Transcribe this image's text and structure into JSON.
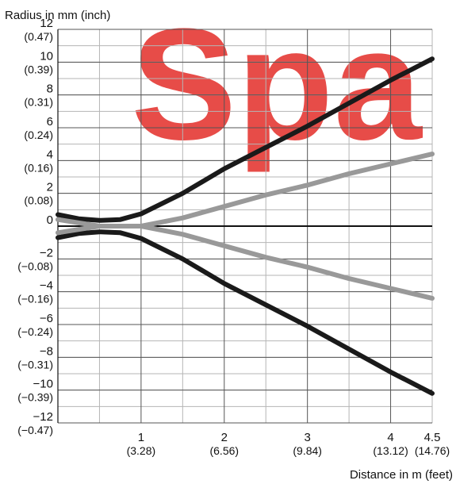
{
  "watermark": "Spa",
  "chart_data": {
    "type": "line",
    "ylabel": "Radius in mm (inch)",
    "xlabel": "Distance in m (feet)",
    "xlim": [
      0,
      4.5
    ],
    "ylim": [
      -12,
      12
    ],
    "grid": true,
    "x_ticks": [
      {
        "value": 1,
        "label": "1",
        "sublabel": "(3.28)"
      },
      {
        "value": 2,
        "label": "2",
        "sublabel": "(6.56)"
      },
      {
        "value": 3,
        "label": "3",
        "sublabel": "(9.84)"
      },
      {
        "value": 4,
        "label": "4",
        "sublabel": "(13.12)"
      },
      {
        "value": 4.5,
        "label": "4.5",
        "sublabel": "(14.76)"
      }
    ],
    "y_ticks": [
      {
        "value": 12,
        "label": "12",
        "sublabel": "(0.47)"
      },
      {
        "value": 10,
        "label": "10",
        "sublabel": "(0.39)"
      },
      {
        "value": 8,
        "label": "8",
        "sublabel": "(0.31)"
      },
      {
        "value": 6,
        "label": "6",
        "sublabel": "(0.24)"
      },
      {
        "value": 4,
        "label": "4",
        "sublabel": "(0.16)"
      },
      {
        "value": 2,
        "label": "2",
        "sublabel": "(0.08)"
      },
      {
        "value": 0,
        "label": "0",
        "sublabel": ""
      },
      {
        "value": -2,
        "label": "−2",
        "sublabel": "(−0.08)"
      },
      {
        "value": -4,
        "label": "−4",
        "sublabel": "(−0.16)"
      },
      {
        "value": -6,
        "label": "−6",
        "sublabel": "(−0.24)"
      },
      {
        "value": -8,
        "label": "−8",
        "sublabel": "(−0.31)"
      },
      {
        "value": -10,
        "label": "−10",
        "sublabel": "(−0.39)"
      },
      {
        "value": -12,
        "label": "−12",
        "sublabel": "(−0.47)"
      }
    ],
    "series": [
      {
        "color": "#1a1a1a",
        "width": 6,
        "x": [
          0,
          0.25,
          0.5,
          0.75,
          1.0,
          1.5,
          2.0,
          2.5,
          3.0,
          3.5,
          4.0,
          4.5
        ],
        "y": [
          0.7,
          0.45,
          0.35,
          0.4,
          0.75,
          2.0,
          3.5,
          4.8,
          6.1,
          7.5,
          8.9,
          10.2
        ]
      },
      {
        "color": "#1a1a1a",
        "width": 6,
        "x": [
          0,
          0.25,
          0.5,
          0.75,
          1.0,
          1.5,
          2.0,
          2.5,
          3.0,
          3.5,
          4.0,
          4.5
        ],
        "y": [
          -0.7,
          -0.45,
          -0.35,
          -0.4,
          -0.75,
          -2.0,
          -3.5,
          -4.8,
          -6.1,
          -7.5,
          -8.9,
          -10.2
        ]
      },
      {
        "color": "#999999",
        "width": 6,
        "x": [
          0,
          0.5,
          1.0,
          1.5,
          2.0,
          2.5,
          3.0,
          3.5,
          4.0,
          4.5
        ],
        "y": [
          0.4,
          0.0,
          0.0,
          0.5,
          1.2,
          1.9,
          2.5,
          3.2,
          3.8,
          4.4
        ]
      },
      {
        "color": "#999999",
        "width": 6,
        "x": [
          0,
          0.5,
          1.0,
          1.5,
          2.0,
          2.5,
          3.0,
          3.5,
          4.0,
          4.5
        ],
        "y": [
          -0.4,
          0.0,
          0.0,
          -0.5,
          -1.2,
          -1.9,
          -2.5,
          -3.2,
          -3.8,
          -4.4
        ]
      }
    ]
  }
}
